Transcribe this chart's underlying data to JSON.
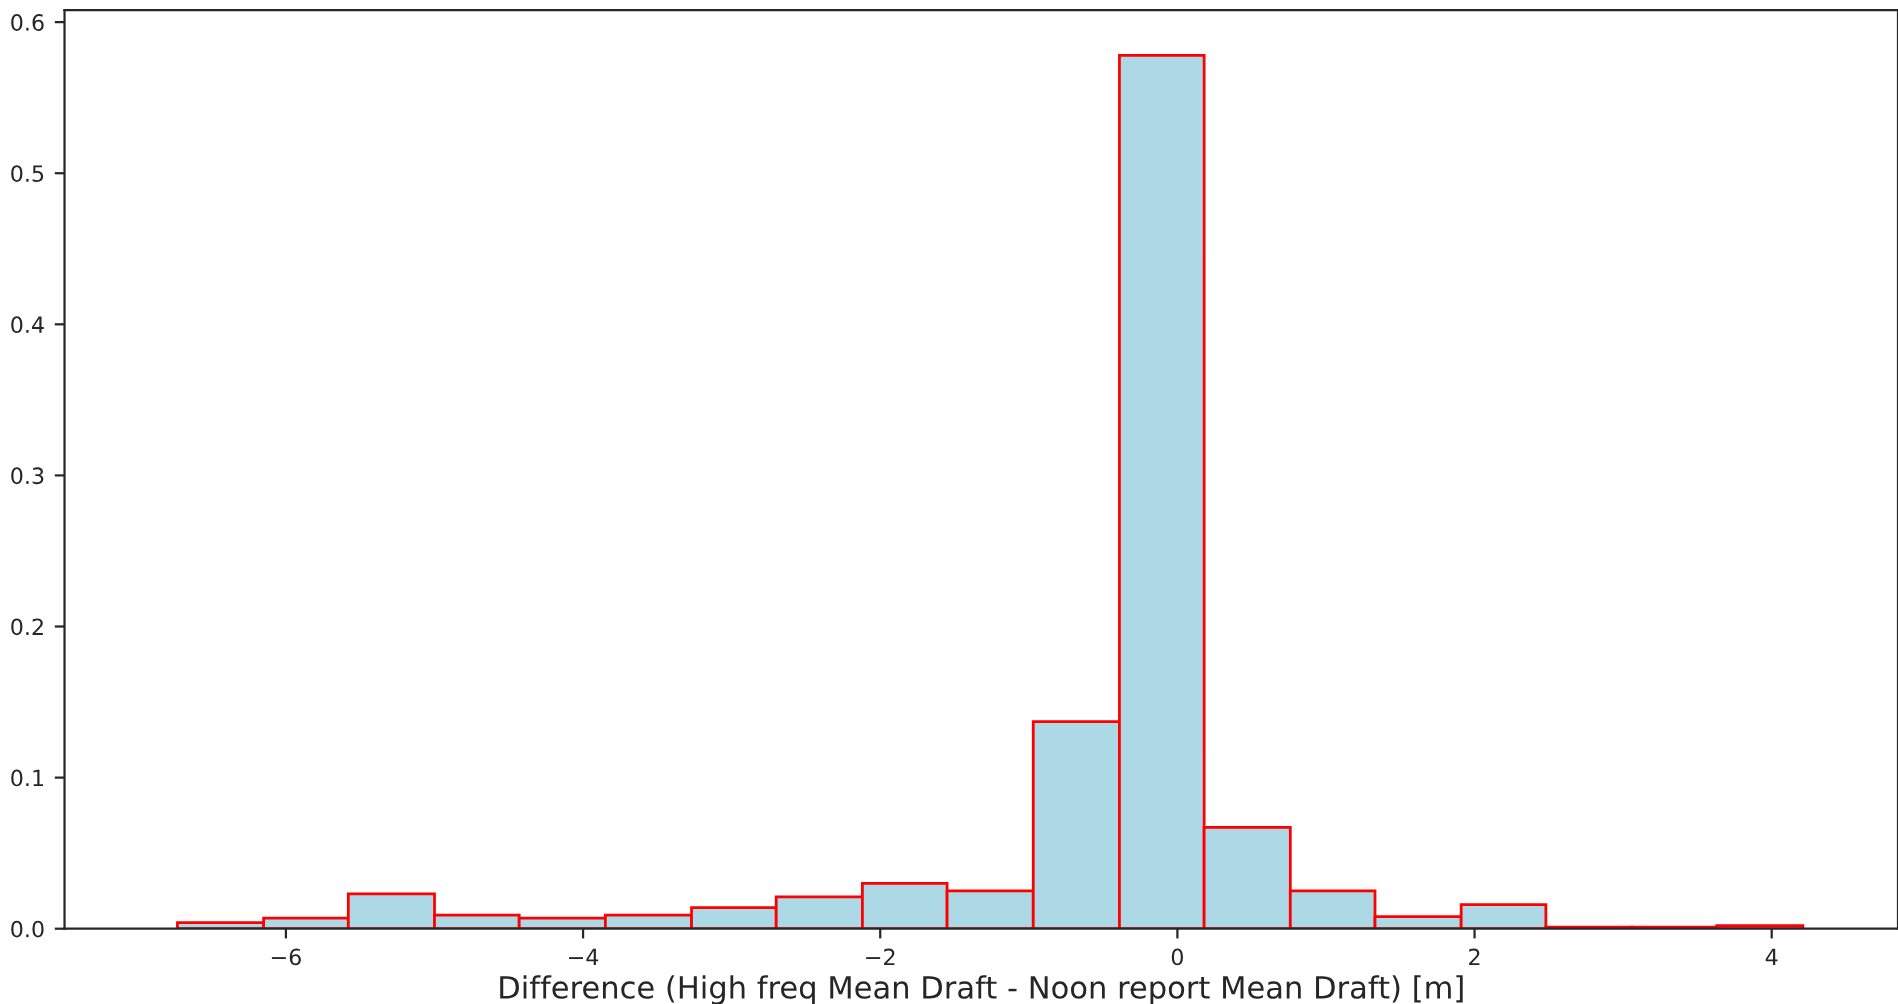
{
  "chart_data": {
    "type": "histogram",
    "xlabel": "Difference (High freq Mean Draft - Noon report Mean Draft) [m]",
    "bins": [
      -6.73,
      -6.15,
      -5.58,
      -5.0,
      -4.43,
      -3.85,
      -3.27,
      -2.7,
      -2.12,
      -1.55,
      -0.97,
      -0.39,
      0.18,
      0.76,
      1.33,
      1.91,
      2.48,
      3.06,
      3.63,
      4.21
    ],
    "values": [
      0.004,
      0.007,
      0.023,
      0.009,
      0.007,
      0.009,
      0.014,
      0.021,
      0.03,
      0.025,
      0.137,
      0.578,
      0.067,
      0.025,
      0.008,
      0.016,
      0.001,
      0.001,
      0.002
    ],
    "color": "#add8e6",
    "xlim": [
      -7.49,
      4.85
    ],
    "ylim": [
      0,
      0.608
    ],
    "xticks": [
      {
        "value": -6,
        "label": "−6"
      },
      {
        "value": -4,
        "label": "−4"
      },
      {
        "value": -2,
        "label": "−2"
      },
      0,
      2,
      4
    ],
    "yticks": [
      {
        "value": 0,
        "label": "0.0"
      },
      0.1,
      0.2,
      0.3,
      0.4,
      0.5,
      0.6
    ],
    "grid": false
  }
}
